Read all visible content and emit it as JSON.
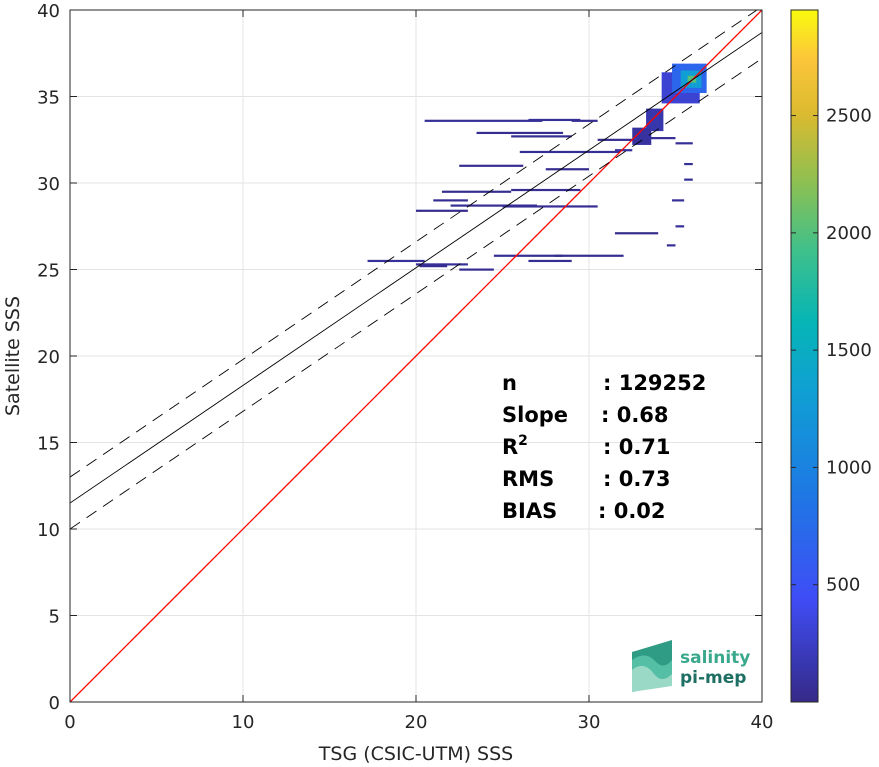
{
  "chart_data": {
    "type": "heatmap",
    "xlabel": "TSG (CSIC-UTM) SSS",
    "ylabel": "Satellite SSS",
    "xlim": [
      0,
      40
    ],
    "ylim": [
      0,
      40
    ],
    "xticks": [
      0,
      10,
      20,
      30,
      40
    ],
    "yticks": [
      0,
      5,
      10,
      15,
      20,
      25,
      30,
      35,
      40
    ],
    "grid": true,
    "colorbar": {
      "range": [
        0,
        2950
      ],
      "ticks": [
        500,
        1000,
        1500,
        2000,
        2500
      ],
      "colormap": "parula"
    },
    "lines": {
      "identity": {
        "from": [
          0,
          0
        ],
        "to": [
          40,
          40
        ],
        "color": "#ff0000"
      },
      "fit": {
        "intercept": 11.5,
        "slope": 0.68,
        "color": "#000000"
      },
      "upper_band": {
        "intercept": 13.0,
        "slope": 0.68,
        "style": "dashed"
      },
      "lower_band": {
        "intercept": 10.0,
        "slope": 0.68,
        "style": "dashed"
      }
    },
    "stats": [
      {
        "label": "n",
        "value": ": 129252"
      },
      {
        "label": "Slope",
        "value": ": 0.68"
      },
      {
        "label": "R",
        "sup": "2",
        "value": ": 0.71"
      },
      {
        "label": "RMS",
        "value": ": 0.73"
      },
      {
        "label": "BIAS",
        "value": ": 0.02"
      }
    ],
    "segments": [
      {
        "x0": 20.5,
        "x1": 27.3,
        "y": 33.6,
        "c": 60
      },
      {
        "x0": 26.5,
        "x1": 29.5,
        "y": 33.65,
        "c": 60
      },
      {
        "x0": 29.0,
        "x1": 30.5,
        "y": 33.6,
        "c": 40
      },
      {
        "x0": 23.5,
        "x1": 28.5,
        "y": 32.9,
        "c": 40
      },
      {
        "x0": 25.5,
        "x1": 29.0,
        "y": 32.7,
        "c": 40
      },
      {
        "x0": 26.0,
        "x1": 31.8,
        "y": 31.8,
        "c": 50
      },
      {
        "x0": 30.5,
        "x1": 32.8,
        "y": 32.5,
        "c": 40
      },
      {
        "x0": 22.5,
        "x1": 26.2,
        "y": 31.0,
        "c": 40
      },
      {
        "x0": 27.5,
        "x1": 30.0,
        "y": 30.8,
        "c": 30
      },
      {
        "x0": 21.5,
        "x1": 25.5,
        "y": 29.5,
        "c": 40
      },
      {
        "x0": 25.5,
        "x1": 29.5,
        "y": 29.6,
        "c": 40
      },
      {
        "x0": 21.0,
        "x1": 23.0,
        "y": 29.0,
        "c": 40
      },
      {
        "x0": 22.0,
        "x1": 27.0,
        "y": 28.7,
        "c": 50
      },
      {
        "x0": 25.0,
        "x1": 30.5,
        "y": 28.65,
        "c": 50
      },
      {
        "x0": 20.0,
        "x1": 23.0,
        "y": 28.4,
        "c": 30
      },
      {
        "x0": 17.2,
        "x1": 20.5,
        "y": 25.5,
        "c": 70
      },
      {
        "x0": 20.0,
        "x1": 23.0,
        "y": 25.3,
        "c": 70
      },
      {
        "x0": 20.2,
        "x1": 21.8,
        "y": 25.2,
        "c": 40
      },
      {
        "x0": 22.5,
        "x1": 24.5,
        "y": 25.0,
        "c": 40
      },
      {
        "x0": 24.5,
        "x1": 28.5,
        "y": 25.8,
        "c": 50
      },
      {
        "x0": 28.0,
        "x1": 32.0,
        "y": 25.8,
        "c": 40
      },
      {
        "x0": 26.5,
        "x1": 29.0,
        "y": 25.5,
        "c": 40
      },
      {
        "x0": 31.5,
        "x1": 34.0,
        "y": 27.1,
        "c": 20
      },
      {
        "x0": 34.5,
        "x1": 35.0,
        "y": 26.4,
        "c": 60
      },
      {
        "x0": 35.0,
        "x1": 35.5,
        "y": 27.5,
        "c": 60
      },
      {
        "x0": 34.8,
        "x1": 35.5,
        "y": 29.0,
        "c": 60
      },
      {
        "x0": 35.5,
        "x1": 36.0,
        "y": 30.2,
        "c": 60
      },
      {
        "x0": 35.5,
        "x1": 36.0,
        "y": 31.1,
        "c": 60
      },
      {
        "x0": 35.0,
        "x1": 36.0,
        "y": 32.3,
        "c": 60
      },
      {
        "x0": 33.5,
        "x1": 35.0,
        "y": 32.6,
        "c": 60
      },
      {
        "x0": 31.5,
        "x1": 32.5,
        "y": 31.9,
        "c": 80
      }
    ],
    "cluster": [
      {
        "x0": 34.2,
        "x1": 36.4,
        "y0": 34.6,
        "y1": 36.4,
        "c": 300
      },
      {
        "x0": 34.8,
        "x1": 36.8,
        "y0": 35.2,
        "y1": 36.9,
        "c": 700
      },
      {
        "x0": 35.3,
        "x1": 36.5,
        "y0": 35.5,
        "y1": 36.5,
        "c": 1300
      },
      {
        "x0": 35.7,
        "x1": 36.2,
        "y0": 35.8,
        "y1": 36.2,
        "c": 2000
      },
      {
        "x0": 33.3,
        "x1": 34.3,
        "y0": 33.0,
        "y1": 34.3,
        "c": 150
      },
      {
        "x0": 32.5,
        "x1": 33.6,
        "y0": 32.2,
        "y1": 33.2,
        "c": 100
      }
    ]
  },
  "logo": {
    "line1": "salinity",
    "line2": "pi-mep"
  }
}
